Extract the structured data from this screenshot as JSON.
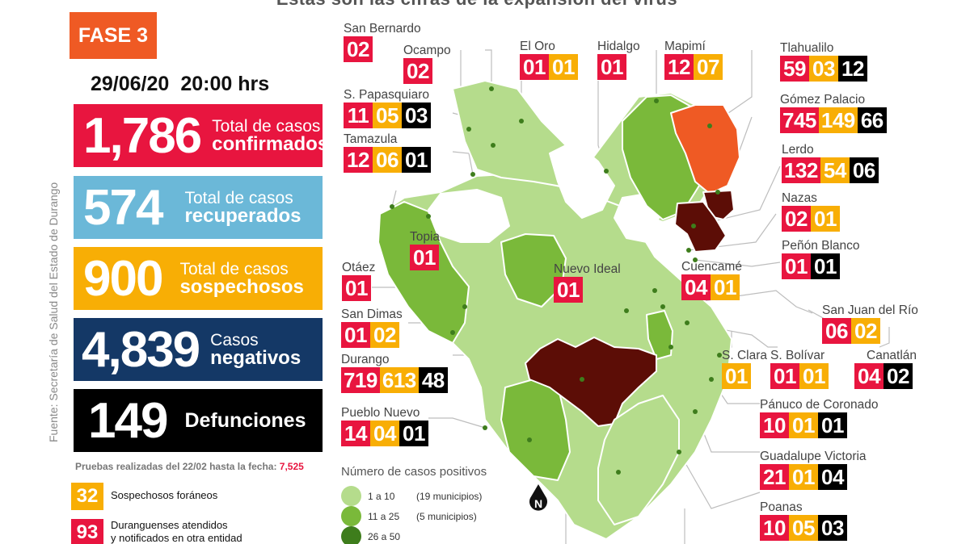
{
  "headline": "Estas son las cifras de la expansión del virus",
  "phase": "FASE 3",
  "date": "29/06/20",
  "time": "20:00 hrs",
  "source": "Fuente: Secretaría de Salud del Estado de Durango",
  "stats": {
    "confirmed": {
      "value": "1,786",
      "l1": "Total de casos",
      "l2": "confirmados"
    },
    "recovered": {
      "value": "574",
      "l1": "Total de casos",
      "l2": "recuperados"
    },
    "suspected": {
      "value": "900",
      "l1": "Total de casos",
      "l2": "sospechosos"
    },
    "negative": {
      "value": "4,839",
      "l1": "Casos",
      "l2": "negativos"
    },
    "deaths": {
      "value": "149",
      "l1": "",
      "l2": "Defunciones"
    }
  },
  "tests": {
    "label": "Pruebas realizadas del 22/02 hasta la fecha: ",
    "value": "7,525"
  },
  "foreign_suspected": {
    "value": "32",
    "label": "Sospechosos foráneos"
  },
  "other_state": {
    "value": "93",
    "line1": "Duranguenses atendidos",
    "line2": "y notificados en otra entidad"
  },
  "legend": {
    "title": "Número de casos positivos",
    "rows": [
      {
        "range": "1 a 10",
        "count": "(19 municipios)",
        "color": "#b5dc8c"
      },
      {
        "range": "11 a 25",
        "count": "(5 municipios)",
        "color": "#7ab93a"
      },
      {
        "range": "26 a 50",
        "count": "",
        "color": "#3e7d1c"
      }
    ]
  },
  "colors": {
    "red": "#e8153f",
    "yellow": "#f8ae05",
    "black": "#000000",
    "orange": "#ef5a24",
    "light_green": "#b5dc8c",
    "mid_green": "#7ab93a",
    "dark_red": "#5c0d06"
  },
  "municipalities": [
    {
      "name": "San Bernardo",
      "red": "02"
    },
    {
      "name": "Ocampo",
      "red": "02"
    },
    {
      "name": "El Oro",
      "red": "01",
      "yellow": "01"
    },
    {
      "name": "Hidalgo",
      "red": "01"
    },
    {
      "name": "Mapimí",
      "red": "12",
      "yellow": "07"
    },
    {
      "name": "Tlahualilo",
      "red": "59",
      "yellow": "03",
      "black": "12"
    },
    {
      "name": "S. Papasquiaro",
      "red": "11",
      "yellow": "05",
      "black": "03"
    },
    {
      "name": "Gómez Palacio",
      "red": "745",
      "yellow": "149",
      "black": "66"
    },
    {
      "name": "Tamazula",
      "red": "12",
      "yellow": "06",
      "black": "01"
    },
    {
      "name": "Lerdo",
      "red": "132",
      "yellow": "54",
      "black": "06"
    },
    {
      "name": "Nazas",
      "red": "02",
      "yellow": "01"
    },
    {
      "name": "Peñón Blanco",
      "red": "01",
      "black": "01"
    },
    {
      "name": "Topia",
      "red": "01"
    },
    {
      "name": "Otáez",
      "red": "01"
    },
    {
      "name": "Nuevo Ideal",
      "red": "01"
    },
    {
      "name": "Cuencamé",
      "red": "04",
      "yellow": "01"
    },
    {
      "name": "San Juan del Río",
      "red": "06",
      "yellow": "02"
    },
    {
      "name": "San Dimas",
      "red": "01",
      "yellow": "02"
    },
    {
      "name": "Durango",
      "red": "719",
      "yellow": "613",
      "black": "48"
    },
    {
      "name": "S. Clara",
      "yellow": "01"
    },
    {
      "name": "S. Bolívar",
      "red": "01",
      "yellow": "01"
    },
    {
      "name": "Canatlán",
      "red": "04",
      "black": "02"
    },
    {
      "name": "Pueblo Nuevo",
      "red": "14",
      "yellow": "04",
      "black": "01"
    },
    {
      "name": "Pánuco de Coronado",
      "red": "10",
      "yellow": "01",
      "black": "01"
    },
    {
      "name": "Guadalupe Victoria",
      "red": "21",
      "yellow": "01",
      "black": "04"
    },
    {
      "name": "Poanas",
      "red": "10",
      "yellow": "05",
      "black": "03"
    }
  ]
}
